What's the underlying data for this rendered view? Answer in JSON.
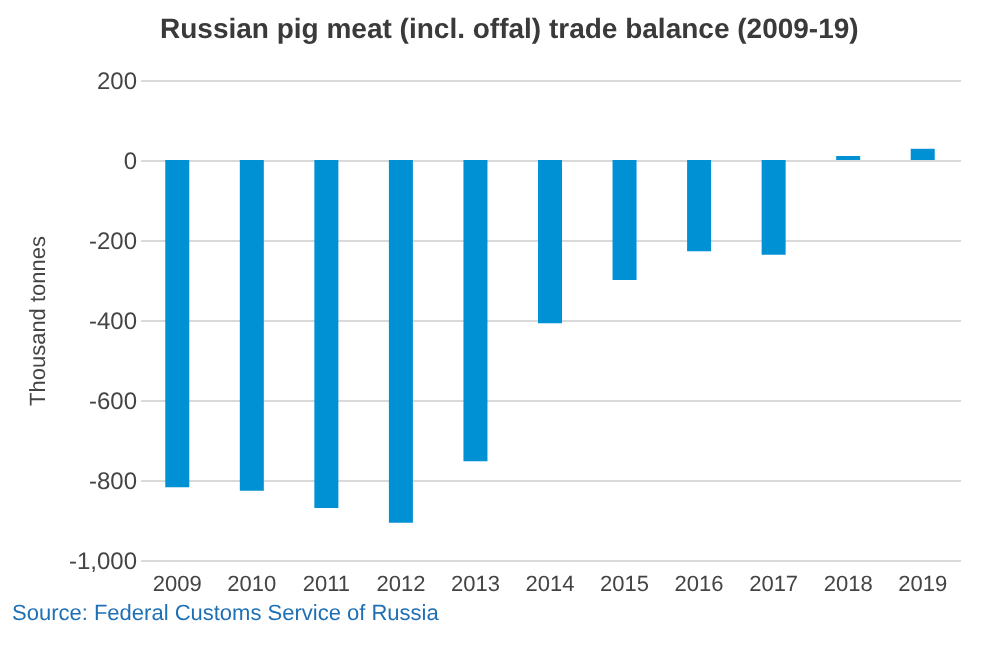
{
  "chart_data": {
    "type": "bar",
    "title": "Russian pig meat (incl. offal) trade balance (2009-19)",
    "ylabel": "Thousand tonnes",
    "categories": [
      "2009",
      "2010",
      "2011",
      "2012",
      "2013",
      "2014",
      "2015",
      "2016",
      "2017",
      "2018",
      "2019"
    ],
    "values": [
      -818,
      -827,
      -870,
      -907,
      -753,
      -408,
      -300,
      -228,
      -237,
      10,
      28
    ],
    "color": "#0090d4",
    "ylim": [
      -1000,
      200
    ],
    "yticks": [
      {
        "value": -1000,
        "label": "-1,000"
      },
      -800,
      -600,
      -400,
      -200,
      0,
      200
    ],
    "grid": "y",
    "annotations": [
      "Source: Federal Customs Service of Russia"
    ]
  }
}
